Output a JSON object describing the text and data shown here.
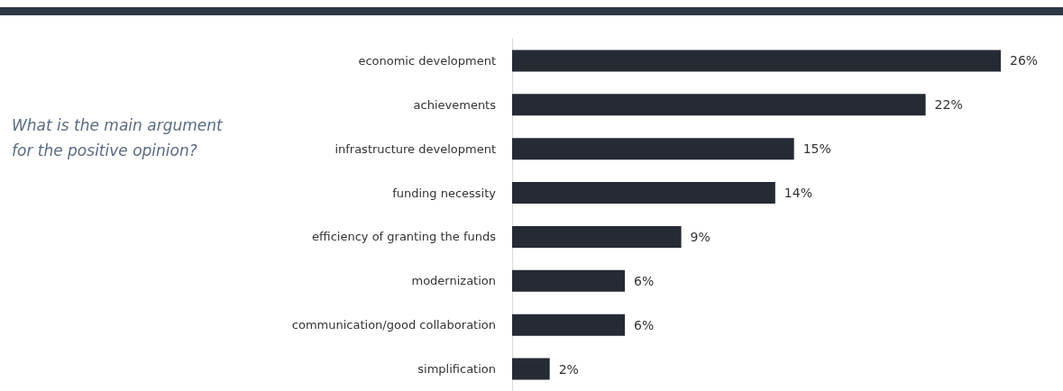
{
  "chart_data": {
    "type": "bar",
    "orientation": "horizontal",
    "title": "What is the main argument\nfor the positive opinion?",
    "categories": [
      "economic development",
      "achievements",
      "infrastructure development",
      "funding necessity",
      "efficiency of granting the funds",
      "modernization",
      "communication/good collaboration",
      "simplification"
    ],
    "values": [
      26,
      22,
      15,
      14,
      9,
      6,
      6,
      2
    ],
    "value_labels": [
      "26%",
      "22%",
      "15%",
      "14%",
      "9%",
      "6%",
      "6%",
      "2%"
    ],
    "color": "#252a33"
  }
}
